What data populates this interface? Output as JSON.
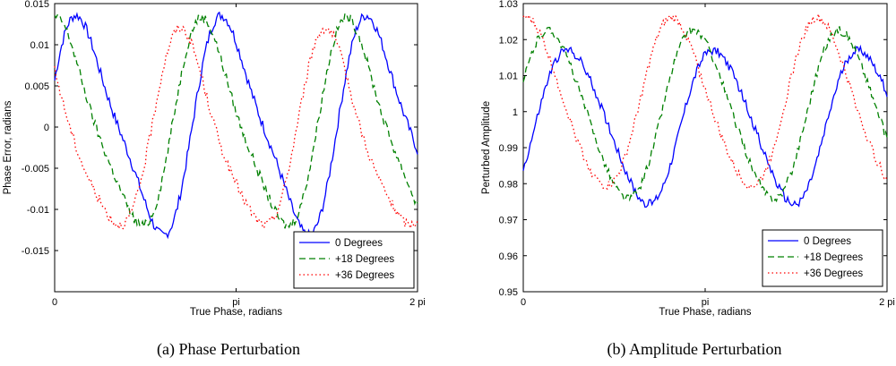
{
  "chart_data": [
    {
      "type": "line",
      "caption": "(a)  Phase Perturbation",
      "xlabel": "True Phase, radians",
      "ylabel": "Phase Error, radians",
      "xlim": [
        0,
        6.2832
      ],
      "ylim": [
        -0.02,
        0.015
      ],
      "xticks": [
        0,
        3.1416,
        6.2832
      ],
      "xtick_labels": [
        "0",
        "pi",
        "2 pi"
      ],
      "yticks": [
        -0.015,
        -0.01,
        -0.005,
        0,
        0.005,
        0.01,
        0.015
      ],
      "ytick_labels": [
        "-0.015",
        "-0.01",
        "-0.005",
        "0",
        "0.005",
        "0.01",
        "0.015"
      ],
      "legend_position": "bottom-right",
      "series": [
        {
          "name": "0 Degrees",
          "color": "#0000ff",
          "style": "solid",
          "offset": 0,
          "amplitude": 0.0125,
          "freq": 2.5,
          "phase_deg": 20,
          "harmonic": 0.0025,
          "noise": 0.0006
        },
        {
          "name": "+18 Degrees",
          "color": "#008000",
          "style": "dashed",
          "offset": 0,
          "amplitude": 0.012,
          "freq": 2.5,
          "phase_deg": 72,
          "harmonic": 0.0022,
          "noise": 0.0006
        },
        {
          "name": "+36 Degrees",
          "color": "#ff0000",
          "style": "dotted",
          "offset": -0.001,
          "amplitude": 0.0115,
          "freq": 2.5,
          "phase_deg": 128,
          "harmonic": 0.002,
          "noise": 0.0006
        }
      ]
    },
    {
      "type": "line",
      "caption": "(b)  Amplitude Perturbation",
      "xlabel": "True Phase, radians",
      "ylabel": "Perturbed Amplitude",
      "xlim": [
        0,
        6.2832
      ],
      "ylim": [
        0.95,
        1.03
      ],
      "xticks": [
        0,
        3.1416,
        6.2832
      ],
      "xtick_labels": [
        "0",
        "pi",
        "2 pi"
      ],
      "yticks": [
        0.95,
        0.96,
        0.97,
        0.98,
        0.99,
        1.0,
        1.01,
        1.02,
        1.03
      ],
      "ytick_labels": [
        "0.95",
        "0.96",
        "0.97",
        "0.98",
        "0.99",
        "1",
        "1.01",
        "1.02",
        "1.03"
      ],
      "legend_position": "bottom-right",
      "series": [
        {
          "name": "0 Degrees",
          "color": "#0000ff",
          "style": "solid",
          "offset": 0.996,
          "amplitude": 0.021,
          "freq": 2.5,
          "phase_deg": -30,
          "harmonic": 0.002,
          "noise": 0.0012
        },
        {
          "name": "+18 Degrees",
          "color": "#008000",
          "style": "dashed",
          "offset": 0.999,
          "amplitude": 0.023,
          "freq": 2.5,
          "phase_deg": 20,
          "harmonic": 0.002,
          "noise": 0.0012
        },
        {
          "name": "+36 Degrees",
          "color": "#ff0000",
          "style": "dotted",
          "offset": 1.002,
          "amplitude": 0.023,
          "freq": 2.5,
          "phase_deg": 75,
          "harmonic": 0.002,
          "noise": 0.0012
        }
      ]
    }
  ]
}
